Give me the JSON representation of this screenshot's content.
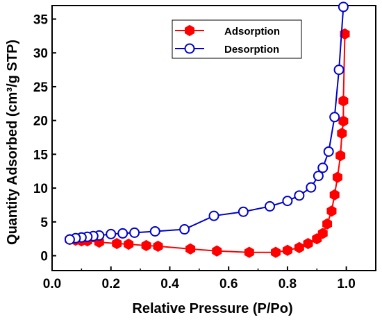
{
  "chart_data": {
    "type": "line",
    "xlabel": "Relative Pressure (P/Po)",
    "ylabel": "Quantity Adsorbed (cm³/g STP)",
    "xlim": [
      0.0,
      1.1
    ],
    "ylim": [
      -2.2,
      37
    ],
    "xticks": [
      0.0,
      0.2,
      0.4,
      0.6,
      0.8,
      1.0
    ],
    "xtick_labels": [
      "0.0",
      "0.2",
      "0.4",
      "0.6",
      "0.8",
      "1.0"
    ],
    "yticks": [
      0,
      5,
      10,
      15,
      20,
      25,
      30,
      35
    ],
    "ytick_labels": [
      "0",
      "5",
      "10",
      "15",
      "20",
      "25",
      "30",
      "35"
    ],
    "legend_position": "top-right",
    "grid": false,
    "series": [
      {
        "name": "Adsorption",
        "color": "#ff0000",
        "marker": "filled-hexagon",
        "x": [
          0.06,
          0.08,
          0.1,
          0.12,
          0.16,
          0.22,
          0.26,
          0.32,
          0.36,
          0.47,
          0.56,
          0.67,
          0.76,
          0.8,
          0.84,
          0.87,
          0.9,
          0.92,
          0.935,
          0.95,
          0.96,
          0.97,
          0.98,
          0.985,
          0.99,
          0.99,
          0.995
        ],
        "y": [
          2.4,
          2.3,
          2.2,
          2.2,
          2.0,
          1.8,
          1.7,
          1.5,
          1.4,
          1.0,
          0.7,
          0.5,
          0.5,
          0.8,
          1.2,
          1.8,
          2.5,
          3.3,
          4.7,
          6.6,
          9.0,
          11.6,
          14.8,
          18.1,
          19.9,
          22.9,
          32.8
        ]
      },
      {
        "name": "Desorption",
        "color": "#0000cc",
        "marker": "open-circle",
        "x": [
          0.99,
          0.975,
          0.96,
          0.94,
          0.92,
          0.905,
          0.88,
          0.84,
          0.8,
          0.74,
          0.65,
          0.55,
          0.45,
          0.35,
          0.28,
          0.24,
          0.2,
          0.16,
          0.14,
          0.12,
          0.1,
          0.08,
          0.06
        ],
        "y": [
          36.8,
          27.5,
          20.5,
          15.4,
          13.0,
          11.8,
          10.1,
          8.9,
          8.1,
          7.3,
          6.5,
          5.9,
          3.9,
          3.6,
          3.4,
          3.3,
          3.2,
          3.0,
          2.9,
          2.8,
          2.7,
          2.6,
          2.4
        ]
      }
    ]
  }
}
